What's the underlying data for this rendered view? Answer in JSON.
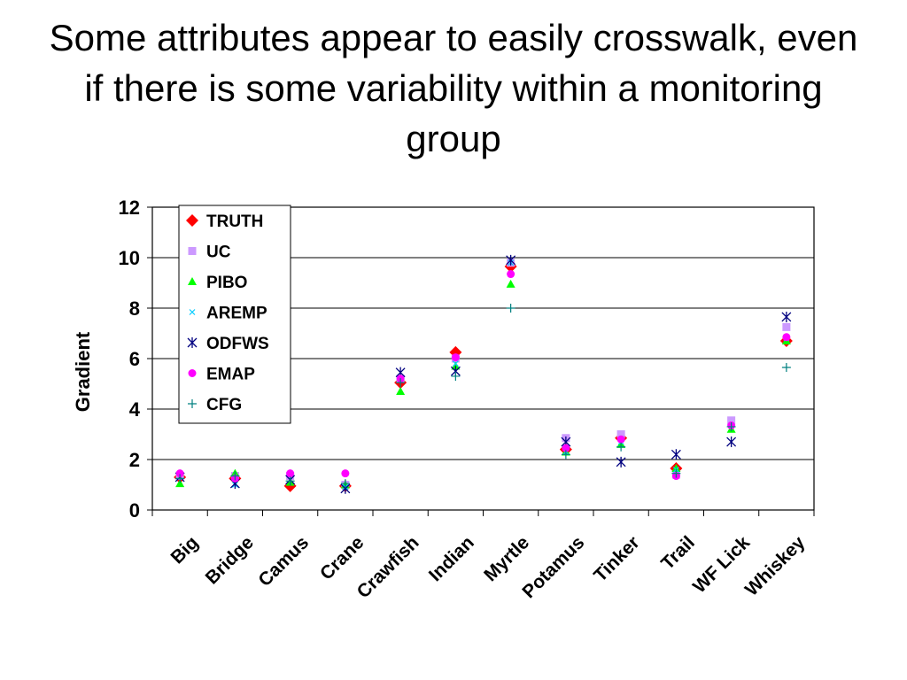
{
  "slide": {
    "title": "Some attributes appear to easily crosswalk, even if there is some variability within a monitoring group"
  },
  "chart_data": {
    "type": "scatter",
    "title": "",
    "ylabel": "Gradient",
    "xlabel": "",
    "ylim": [
      0,
      12
    ],
    "yticks": [
      0,
      2,
      4,
      6,
      8,
      10,
      12
    ],
    "grid": "horizontal",
    "legend_position": "top-left",
    "categories": [
      "Big",
      "Bridge",
      "Camus",
      "Crane",
      "Crawfish",
      "Indian",
      "Myrtle",
      "Potamus",
      "Tinker",
      "Trail",
      "WF Lick",
      "Whiskey"
    ],
    "series": [
      {
        "name": "TRUTH",
        "marker": "diamond",
        "color": "#FF0000",
        "values": [
          1.3,
          1.25,
          0.95,
          0.95,
          5.05,
          6.25,
          9.65,
          2.4,
          2.85,
          1.65,
          null,
          6.7
        ]
      },
      {
        "name": "UC",
        "marker": "square",
        "color": "#CC99FF",
        "values": [
          1.35,
          1.35,
          1.35,
          1.0,
          5.2,
          6.0,
          9.8,
          2.85,
          3.0,
          1.4,
          3.55,
          7.25
        ]
      },
      {
        "name": "PIBO",
        "marker": "triangle",
        "color": "#00FF00",
        "values": [
          1.05,
          1.45,
          1.1,
          1.0,
          4.7,
          5.7,
          8.95,
          2.3,
          2.6,
          1.65,
          3.2,
          6.7
        ]
      },
      {
        "name": "AREMP",
        "marker": "x-small",
        "color": "#00CCFF",
        "values": [
          1.3,
          1.0,
          1.2,
          0.9,
          5.15,
          5.8,
          9.8,
          2.3,
          2.7,
          1.6,
          3.35,
          6.8
        ]
      },
      {
        "name": "ODFWS",
        "marker": "asterisk",
        "color": "#000080",
        "values": [
          1.3,
          1.05,
          1.2,
          0.85,
          5.45,
          5.5,
          9.9,
          2.7,
          1.9,
          2.2,
          2.7,
          7.65
        ]
      },
      {
        "name": "EMAP",
        "marker": "circle",
        "color": "#FF00FF",
        "values": [
          1.45,
          1.25,
          1.45,
          1.45,
          5.2,
          6.05,
          9.35,
          2.45,
          2.8,
          1.35,
          3.35,
          6.85
        ]
      },
      {
        "name": "CFG",
        "marker": "plus",
        "color": "#008080",
        "values": [
          1.25,
          1.35,
          1.15,
          1.05,
          5.05,
          5.3,
          8.0,
          2.2,
          2.5,
          1.45,
          3.3,
          5.65
        ]
      }
    ]
  }
}
